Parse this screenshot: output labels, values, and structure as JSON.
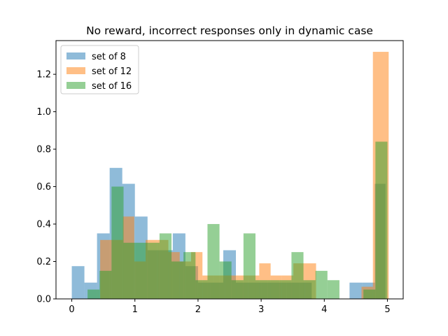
{
  "chart_data": {
    "type": "bar",
    "title": "No reward, incorrect responses only in dynamic case",
    "xlabel": "",
    "ylabel": "",
    "xlim": [
      -0.25,
      5.25
    ],
    "ylim": [
      0,
      1.38
    ],
    "xticks": [
      0,
      1,
      2,
      3,
      4,
      5
    ],
    "yticks": [
      0.0,
      0.2,
      0.4,
      0.6,
      0.8,
      1.0,
      1.2
    ],
    "xtick_labels": [
      "0",
      "1",
      "2",
      "3",
      "4",
      "5"
    ],
    "ytick_labels": [
      "0.0",
      "0.2",
      "0.4",
      "0.6",
      "0.8",
      "1.0",
      "1.2"
    ],
    "grid": false,
    "legend_position": "top-left",
    "series": [
      {
        "name": "set of 8",
        "color": "#1f77b4",
        "alpha": 0.5,
        "bins": [
          {
            "x0": 0.0,
            "x1": 0.2,
            "y": 0.175
          },
          {
            "x0": 0.2,
            "x1": 0.4,
            "y": 0.087
          },
          {
            "x0": 0.4,
            "x1": 0.6,
            "y": 0.35
          },
          {
            "x0": 0.6,
            "x1": 0.8,
            "y": 0.7
          },
          {
            "x0": 0.8,
            "x1": 1.0,
            "y": 0.615
          },
          {
            "x0": 1.0,
            "x1": 1.2,
            "y": 0.44
          },
          {
            "x0": 1.2,
            "x1": 1.4,
            "y": 0.26
          },
          {
            "x0": 1.4,
            "x1": 1.6,
            "y": 0.26
          },
          {
            "x0": 1.6,
            "x1": 1.8,
            "y": 0.35
          },
          {
            "x0": 1.8,
            "x1": 2.0,
            "y": 0.175
          },
          {
            "x0": 2.0,
            "x1": 2.2,
            "y": 0.087
          },
          {
            "x0": 2.2,
            "x1": 2.4,
            "y": 0.087
          },
          {
            "x0": 2.4,
            "x1": 2.6,
            "y": 0.26
          },
          {
            "x0": 2.6,
            "x1": 2.8,
            "y": 0.087
          },
          {
            "x0": 2.8,
            "x1": 3.0,
            "y": 0.087
          },
          {
            "x0": 3.0,
            "x1": 3.2,
            "y": 0.087
          },
          {
            "x0": 3.2,
            "x1": 3.4,
            "y": 0.087
          },
          {
            "x0": 3.4,
            "x1": 3.6,
            "y": 0.087
          },
          {
            "x0": 3.6,
            "x1": 3.8,
            "y": 0.087
          },
          {
            "x0": 4.4,
            "x1": 4.6,
            "y": 0.087
          },
          {
            "x0": 4.6,
            "x1": 4.8,
            "y": 0.087
          },
          {
            "x0": 4.8,
            "x1": 4.97,
            "y": 0.615
          }
        ]
      },
      {
        "name": "set of 12",
        "color": "#ff7f0e",
        "alpha": 0.5,
        "bins": [
          {
            "x0": 0.45,
            "x1": 0.63,
            "y": 0.315
          },
          {
            "x0": 0.63,
            "x1": 0.81,
            "y": 0.315
          },
          {
            "x0": 0.81,
            "x1": 0.99,
            "y": 0.44
          },
          {
            "x0": 0.99,
            "x1": 1.17,
            "y": 0.2
          },
          {
            "x0": 1.17,
            "x1": 1.35,
            "y": 0.315
          },
          {
            "x0": 1.35,
            "x1": 1.53,
            "y": 0.315
          },
          {
            "x0": 1.53,
            "x1": 1.71,
            "y": 0.25
          },
          {
            "x0": 1.71,
            "x1": 1.89,
            "y": 0.2
          },
          {
            "x0": 1.89,
            "x1": 2.07,
            "y": 0.25
          },
          {
            "x0": 2.07,
            "x1": 2.25,
            "y": 0.125
          },
          {
            "x0": 2.25,
            "x1": 2.43,
            "y": 0.125
          },
          {
            "x0": 2.43,
            "x1": 2.61,
            "y": 0.125
          },
          {
            "x0": 2.61,
            "x1": 2.79,
            "y": 0.125
          },
          {
            "x0": 2.79,
            "x1": 2.97,
            "y": 0.125
          },
          {
            "x0": 2.97,
            "x1": 3.15,
            "y": 0.19
          },
          {
            "x0": 3.15,
            "x1": 3.33,
            "y": 0.125
          },
          {
            "x0": 3.33,
            "x1": 3.51,
            "y": 0.125
          },
          {
            "x0": 3.51,
            "x1": 3.69,
            "y": 0.19
          },
          {
            "x0": 3.69,
            "x1": 3.87,
            "y": 0.19
          },
          {
            "x0": 4.59,
            "x1": 4.77,
            "y": 0.065
          },
          {
            "x0": 4.77,
            "x1": 4.95,
            "y": 1.32
          },
          {
            "x0": 4.95,
            "x1": 5.02,
            "y": 1.32
          }
        ]
      },
      {
        "name": "set of 16",
        "color": "#2ca02c",
        "alpha": 0.5,
        "bins": [
          {
            "x0": 0.25,
            "x1": 0.44,
            "y": 0.05
          },
          {
            "x0": 0.44,
            "x1": 0.63,
            "y": 0.15
          },
          {
            "x0": 0.63,
            "x1": 0.82,
            "y": 0.6
          },
          {
            "x0": 0.82,
            "x1": 1.01,
            "y": 0.3
          },
          {
            "x0": 1.01,
            "x1": 1.2,
            "y": 0.3
          },
          {
            "x0": 1.2,
            "x1": 1.39,
            "y": 0.3
          },
          {
            "x0": 1.39,
            "x1": 1.58,
            "y": 0.35
          },
          {
            "x0": 1.58,
            "x1": 1.77,
            "y": 0.2
          },
          {
            "x0": 1.77,
            "x1": 1.96,
            "y": 0.25
          },
          {
            "x0": 1.96,
            "x1": 2.15,
            "y": 0.1
          },
          {
            "x0": 2.15,
            "x1": 2.34,
            "y": 0.4
          },
          {
            "x0": 2.34,
            "x1": 2.53,
            "y": 0.2
          },
          {
            "x0": 2.53,
            "x1": 2.72,
            "y": 0.1
          },
          {
            "x0": 2.72,
            "x1": 2.91,
            "y": 0.35
          },
          {
            "x0": 2.91,
            "x1": 3.1,
            "y": 0.1
          },
          {
            "x0": 3.1,
            "x1": 3.29,
            "y": 0.1
          },
          {
            "x0": 3.29,
            "x1": 3.48,
            "y": 0.1
          },
          {
            "x0": 3.48,
            "x1": 3.67,
            "y": 0.25
          },
          {
            "x0": 3.67,
            "x1": 3.86,
            "y": 0.1
          },
          {
            "x0": 3.86,
            "x1": 4.05,
            "y": 0.15
          },
          {
            "x0": 4.05,
            "x1": 4.24,
            "y": 0.1
          },
          {
            "x0": 4.62,
            "x1": 4.81,
            "y": 0.05
          },
          {
            "x0": 4.81,
            "x1": 5.0,
            "y": 0.84
          }
        ]
      }
    ]
  }
}
